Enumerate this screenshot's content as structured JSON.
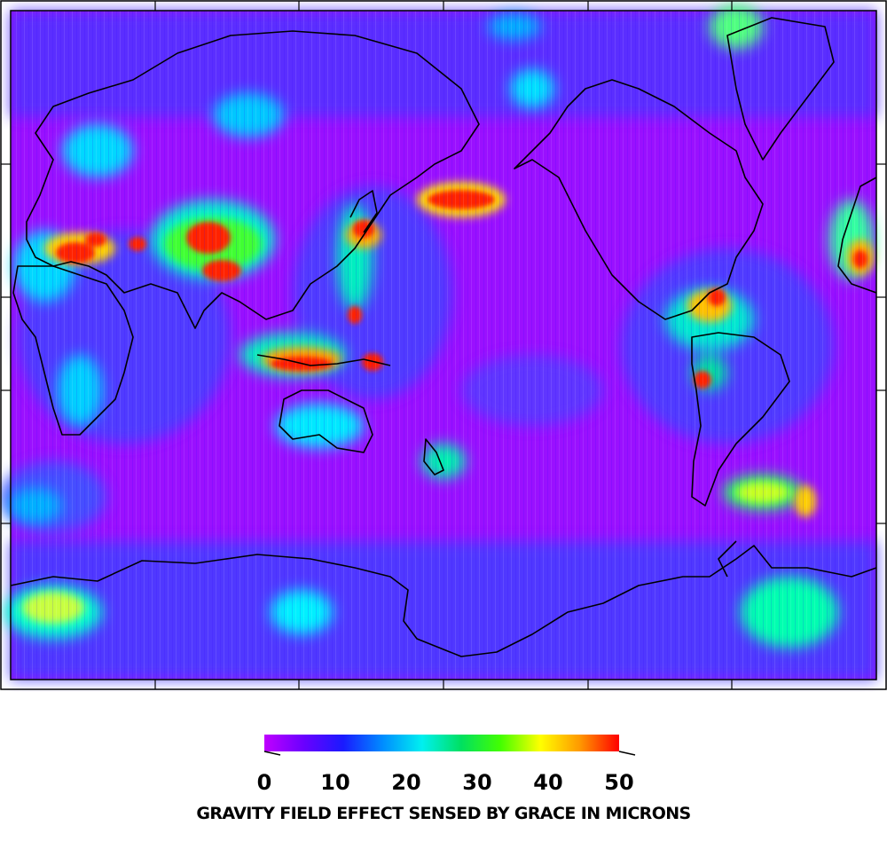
{
  "map": {
    "projection": "global",
    "coastline_color": "#000000",
    "field_colors": {
      "low": "#a600ff",
      "mid_low": "#3a2bff",
      "mid": "#00e5ff",
      "mid_high": "#22dd22",
      "high": "#ffee00",
      "max": "#ff1a00"
    }
  },
  "colorbar": {
    "title": "GRAVITY FIELD EFFECT SENSED BY GRACE IN MICRONS",
    "ticks": [
      "0",
      "10",
      "20",
      "30",
      "40",
      "50"
    ],
    "min": 0,
    "max": 50,
    "stops": [
      "#c000ff",
      "#6a00ff",
      "#1a1aff",
      "#008cff",
      "#00f0f0",
      "#00e060",
      "#44ff00",
      "#ffff00",
      "#ff9900",
      "#ff0000"
    ]
  }
}
